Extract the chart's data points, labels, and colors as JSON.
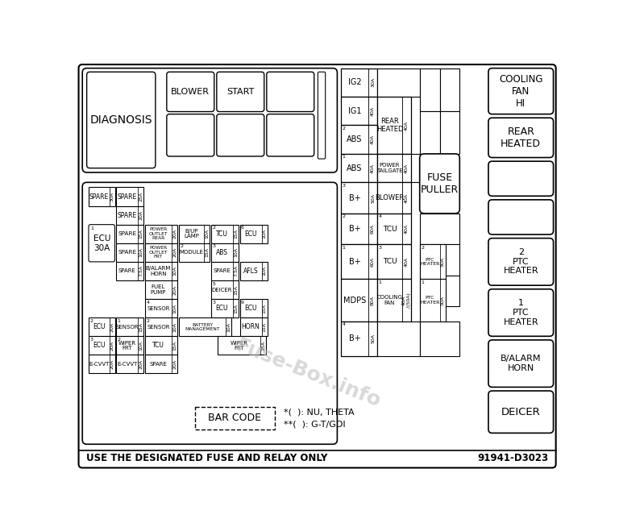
{
  "bg": "#ffffff",
  "bottom_left": "USE THE DESIGNATED FUSE AND RELAY ONLY",
  "bottom_right": "91941-D3023",
  "watermark": "Fuse-Box.info",
  "fn1": "*(  ): NU, THETA",
  "fn2": "**(  ): G-T/GDI",
  "bar": "BAR CODE"
}
